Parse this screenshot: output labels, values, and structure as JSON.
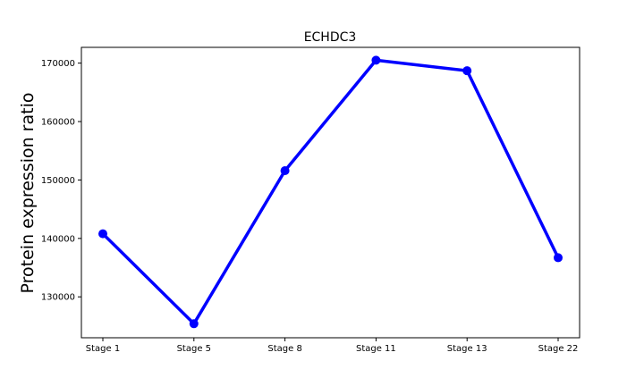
{
  "chart_data": {
    "type": "line",
    "title": "ECHDC3",
    "xlabel": "",
    "ylabel": "Protein expression ratio",
    "categories": [
      "Stage 1",
      "Stage 5",
      "Stage 8",
      "Stage 11",
      "Stage 13",
      "Stage 22"
    ],
    "series": [
      {
        "values": [
          140800,
          125400,
          151600,
          170500,
          168700,
          136700
        ],
        "color": "#0000ff"
      }
    ],
    "ylim": [
      123000,
      172700
    ],
    "yticks": [
      130000,
      140000,
      150000,
      160000,
      170000
    ],
    "ytick_labels": [
      "130000",
      "140000",
      "150000",
      "160000",
      "170000"
    ],
    "grid": false,
    "legend": false
  }
}
